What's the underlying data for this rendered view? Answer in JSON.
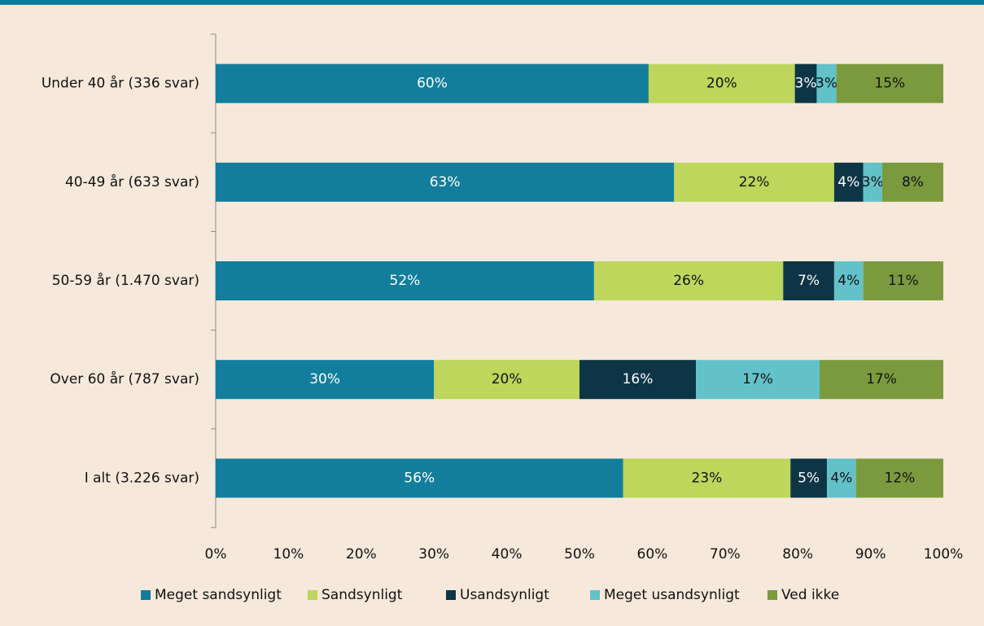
{
  "chart_data": {
    "type": "stacked-barh",
    "categories": [
      "Under 40 år (336 svar)",
      "40-49 år (633 svar)",
      "50-59 år (1.470 svar)",
      "Over 60 år (787 svar)",
      "I alt (3.226 svar)"
    ],
    "series": [
      {
        "name": "Meget sandsynligt",
        "color": "#127e9b",
        "label_color": "#ffffff",
        "values": [
          59.5,
          63,
          52,
          30,
          56
        ],
        "value_labels": [
          "60%",
          "63%",
          "52%",
          "30%",
          "56%"
        ]
      },
      {
        "name": "Sandsynligt",
        "color": "#bdd65b",
        "label_color": "#111111",
        "values": [
          20.1,
          22,
          26,
          20,
          23
        ],
        "value_labels": [
          "20%",
          "22%",
          "26%",
          "20%",
          "23%"
        ]
      },
      {
        "name": "Usandsynligt",
        "color": "#0d3546",
        "label_color": "#ffffff",
        "values": [
          3,
          4,
          7,
          16,
          5
        ],
        "value_labels": [
          "3%",
          "4%",
          "7%",
          "16%",
          "5%"
        ]
      },
      {
        "name": "Meget usandsynligt",
        "color": "#63c1c9",
        "label_color": "#111111",
        "values": [
          2.7,
          2.6,
          4,
          17,
          4
        ],
        "value_labels": [
          "3%",
          "3%",
          "4%",
          "17%",
          "4%"
        ]
      },
      {
        "name": "Ved ikke",
        "color": "#7b9a3e",
        "label_color": "#111111",
        "values": [
          14.7,
          8.4,
          11,
          17,
          12
        ],
        "value_labels": [
          "15%",
          "8%",
          "11%",
          "17%",
          "12%"
        ]
      }
    ],
    "xlim": [
      0,
      100
    ],
    "xticks": [
      {
        "value": 0,
        "label": "0%"
      },
      {
        "value": 10,
        "label": "10%"
      },
      {
        "value": 20,
        "label": "20%"
      },
      {
        "value": 30,
        "label": "30%"
      },
      {
        "value": 40,
        "label": "40%"
      },
      {
        "value": 50,
        "label": "50%"
      },
      {
        "value": 60,
        "label": "60%"
      },
      {
        "value": 70,
        "label": "70%"
      },
      {
        "value": 80,
        "label": "80%"
      },
      {
        "value": 90,
        "label": "90%"
      },
      {
        "value": 100,
        "label": "100%"
      }
    ],
    "legend": "bottom"
  }
}
